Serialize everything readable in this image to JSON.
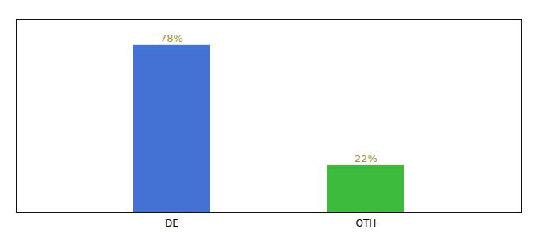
{
  "chart_data": {
    "type": "bar",
    "categories": [
      "DE",
      "OTH"
    ],
    "values": [
      78,
      22
    ],
    "value_labels": [
      "78%",
      "22%"
    ],
    "colors": [
      "#4472d4",
      "#3dbb3d"
    ],
    "ylim": [
      0,
      90
    ],
    "data_labels": true,
    "tick_labels": "x",
    "grid": false
  }
}
